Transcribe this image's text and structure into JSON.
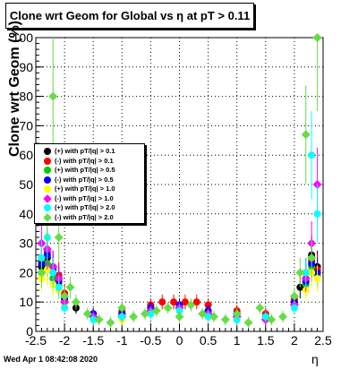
{
  "chart_data": {
    "type": "scatter",
    "title": "Clone wrt Geom for Global vs   η at pT > 0.11",
    "xlabel": "η",
    "ylabel": "Clone wrt Geom (%)",
    "xlim": [
      -2.5,
      2.5
    ],
    "ylim": [
      0,
      100
    ],
    "xticks": [
      "-2.5",
      "-2",
      "-1.5",
      "-1",
      "-0.5",
      "0",
      "0.5",
      "1",
      "1.5",
      "2",
      "2.5"
    ],
    "yticks": [
      "0",
      "10",
      "20",
      "30",
      "40",
      "50",
      "60",
      "70",
      "80",
      "90",
      "100"
    ],
    "grid": true,
    "legend_position": "left-middle",
    "series": [
      {
        "name": "(+) with pT/|q| > 0.1",
        "color": "#000000",
        "x": [
          -2.4,
          -2.3,
          -2.2,
          -2.1,
          -2.0,
          -1.8,
          -1.5,
          -1.0,
          -0.5,
          0.0,
          0.5,
          1.0,
          1.5,
          2.0,
          2.1,
          2.2,
          2.3,
          2.4
        ],
        "y": [
          22,
          25,
          20,
          18,
          12,
          8,
          5,
          6,
          8,
          9,
          7,
          6,
          5,
          10,
          15,
          20,
          26,
          22
        ]
      },
      {
        "name": "(-) with pT/|q| > 0.1",
        "color": "#ff0000",
        "x": [
          -2.4,
          -2.3,
          -2.2,
          -2.1,
          -2.0,
          -1.5,
          -1.0,
          -0.5,
          -0.3,
          -0.1,
          0.1,
          0.3,
          0.5,
          1.0,
          1.5,
          2.0,
          2.2,
          2.3,
          2.4
        ],
        "y": [
          24,
          27,
          22,
          19,
          13,
          6,
          7,
          9,
          10,
          10,
          10,
          10,
          9,
          7,
          6,
          11,
          18,
          24,
          21
        ]
      },
      {
        "name": "(+) with pT/|q| > 0.5",
        "color": "#00cc00",
        "x": [
          -2.4,
          -2.3,
          -2.2,
          -2.1,
          -2.0,
          -1.5,
          -1.0,
          -0.5,
          0.0,
          0.5,
          1.0,
          1.5,
          2.0,
          2.2,
          2.3,
          2.4
        ],
        "y": [
          20,
          23,
          18,
          16,
          10,
          5,
          5,
          7,
          8,
          6,
          5,
          4,
          9,
          16,
          22,
          19
        ]
      },
      {
        "name": "(-) with pT/|q| > 0.5",
        "color": "#0000ff",
        "x": [
          -2.4,
          -2.3,
          -2.2,
          -2.1,
          -2.0,
          -1.5,
          -1.0,
          -0.5,
          0.0,
          0.5,
          1.0,
          1.5,
          2.0,
          2.2,
          2.3,
          2.4
        ],
        "y": [
          23,
          26,
          21,
          17,
          11,
          6,
          6,
          8,
          9,
          7,
          6,
          5,
          10,
          17,
          23,
          20
        ]
      },
      {
        "name": "(+) with pT/|q| > 1.0",
        "color": "#ffff00",
        "x": [
          -2.4,
          -2.3,
          -2.2,
          -2.1,
          -2.0,
          -1.5,
          -1.0,
          -0.5,
          0.0,
          0.5,
          1.0,
          1.5,
          2.0,
          2.2,
          2.3,
          2.4
        ],
        "y": [
          18,
          21,
          16,
          14,
          9,
          4,
          4,
          6,
          7,
          5,
          4,
          4,
          8,
          14,
          20,
          18
        ]
      },
      {
        "name": "(-) with pT/|q| > 1.0",
        "color": "#ff00ff",
        "x": [
          -2.4,
          -2.3,
          -2.2,
          -2.1,
          -2.0,
          -1.5,
          -1.0,
          -0.5,
          0.0,
          0.5,
          1.0,
          1.5,
          2.0,
          2.2,
          2.3,
          2.4
        ],
        "y": [
          30,
          28,
          22,
          18,
          10,
          5,
          5,
          7,
          8,
          6,
          5,
          4,
          9,
          18,
          30,
          50
        ]
      },
      {
        "name": "(+) with pT/|q| > 2.0",
        "color": "#00ffff",
        "x": [
          -2.4,
          -2.3,
          -2.2,
          -2.1,
          -2.0,
          -1.5,
          -1.0,
          -0.5,
          0.0,
          0.5,
          1.0,
          1.5,
          2.0,
          2.2,
          2.3,
          2.4
        ],
        "y": [
          25,
          32,
          20,
          15,
          8,
          4,
          5,
          6,
          7,
          5,
          4,
          5,
          8,
          20,
          60,
          40
        ]
      },
      {
        "name": "(-) with pT/|q| > 2.0",
        "color": "#66dd44",
        "x": [
          -2.4,
          -2.3,
          -2.2,
          -2.1,
          -2.0,
          -1.9,
          -1.8,
          -1.6,
          -1.4,
          -1.2,
          -1.0,
          -0.8,
          -0.6,
          -0.4,
          -0.2,
          0.0,
          0.2,
          0.4,
          0.6,
          0.8,
          1.0,
          1.2,
          1.4,
          1.6,
          1.8,
          2.0,
          2.1,
          2.2,
          2.3,
          2.4
        ],
        "y": [
          20,
          40,
          80,
          32,
          12,
          15,
          10,
          6,
          4,
          3,
          8,
          5,
          6,
          7,
          8,
          5,
          9,
          6,
          5,
          4,
          6,
          3,
          8,
          4,
          5,
          12,
          20,
          67,
          25,
          100
        ]
      }
    ]
  },
  "footer": {
    "timestamp": "Wed Apr  1 08:42:08 2020"
  }
}
